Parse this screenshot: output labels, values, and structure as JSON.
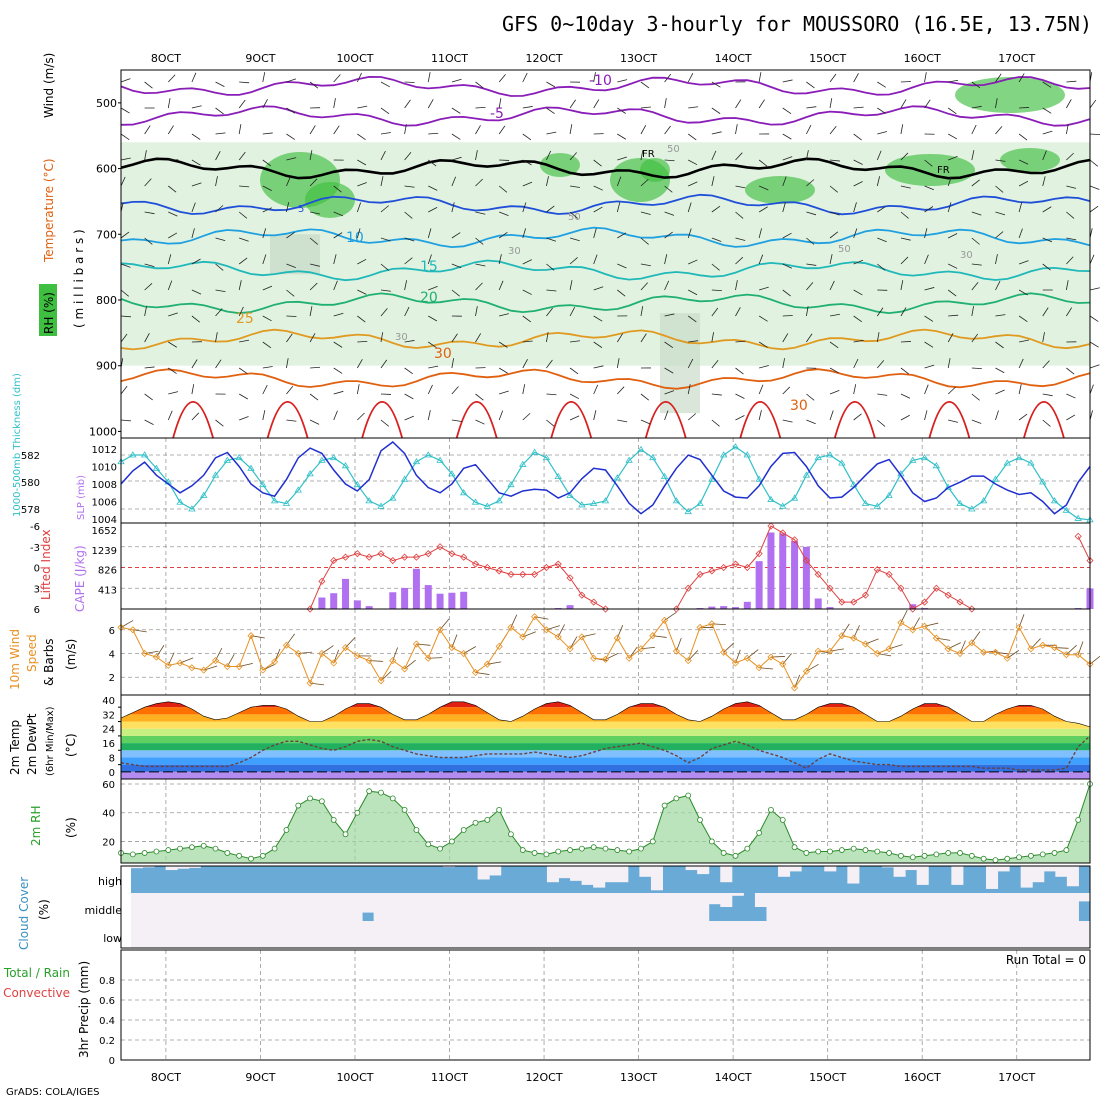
{
  "title": "GFS 0~10day 3-hourly for MOUSSORO (16.5E, 13.75N)",
  "footer": "GrADS: COLA/IGES",
  "time_axis": {
    "labels": [
      "8OCT",
      "9OCT",
      "10OCT",
      "11OCT",
      "12OCT",
      "13OCT",
      "14OCT",
      "15OCT",
      "16OCT",
      "17OCT"
    ]
  },
  "colors": {
    "frame": "#000000",
    "grid": "#999999",
    "rh_green": "#3fbf3f",
    "rh_light": "#e1f2e1",
    "t_minus10": "#8a1db8",
    "t_minus5": "#8a1db8",
    "t_0": "#000000",
    "t_5": "#1f4fd8",
    "t_10": "#1fa0e0",
    "t_15": "#20b8b8",
    "t_20": "#20b070",
    "t_25": "#e09a20",
    "t_30": "#e06010",
    "t_35": "#d82020",
    "slp": "#1f2fd0",
    "thick": "#30c0c8",
    "li": "#e04040",
    "cape": "#b070f0",
    "wind": "#e89020",
    "cloud": "#6aaad6",
    "cloud_clear": "#f4f0f6"
  },
  "panels": {
    "upper_air": {
      "ylabel_parts": [
        "RH (%)",
        "Temperature (°C)",
        "Wind (m/s)"
      ],
      "ylabel_unit": "( m i l l i b a r s )",
      "pressure_ticks": [
        "500",
        "600",
        "700",
        "800",
        "900",
        "1000"
      ],
      "contour_labels": [
        "-10",
        "-5",
        "FR",
        "5",
        "10",
        "15",
        "20",
        "25",
        "30",
        "30",
        "50",
        "50",
        "50",
        "30",
        "30",
        "30",
        "FR"
      ]
    },
    "slp_thickness": {
      "ylabel_left": "1000-500mb Thickness (dm)",
      "ylabel_right": "SLP (mb)",
      "left_ticks": [
        "582",
        "580",
        "578"
      ],
      "right_ticks": [
        "1012",
        "1010",
        "1008",
        "1006",
        "1004"
      ]
    },
    "stability": {
      "ylabel_left": "Lifted Index",
      "ylabel_right": "CAPE (J/kg)",
      "left_ticks": [
        "-6",
        "-3",
        "0",
        "3",
        "6"
      ],
      "right_ticks": [
        "1652",
        "1239",
        "826",
        "413"
      ]
    },
    "wind10m": {
      "ylabel_a": "10m Wind",
      "ylabel_b": "Speed",
      "ylabel_c": "& Barbs",
      "ylabel_unit": "(m/s)",
      "ticks": [
        "6",
        "4",
        "2"
      ]
    },
    "temp2m": {
      "ylabel_a": "2m Temp",
      "ylabel_b": "2m DewPt",
      "ylabel_c": "(6hr Min/Max)",
      "ylabel_unit": "(°C)",
      "ticks": [
        "40",
        "32",
        "24",
        "16",
        "8",
        "0"
      ],
      "ticks_minor": [
        "36",
        "28",
        "20",
        "12",
        "4"
      ]
    },
    "rh2m": {
      "ylabel": "2m RH",
      "ylabel_unit": "(%)",
      "ticks": [
        "60",
        "40",
        "20"
      ]
    },
    "cloud": {
      "ylabel": "Cloud Cover",
      "ylabel_unit": "(%)",
      "levels": [
        "high",
        "middle",
        "low"
      ]
    },
    "precip": {
      "ylabel_a": "Total / Rain",
      "ylabel_b": "Convective",
      "ylabel_unit": "3hr Precip (mm)",
      "ticks": [
        "0.8",
        "0.6",
        "0.4",
        "0.2",
        "0"
      ],
      "run_total": "Run Total = 0"
    }
  },
  "chart_data": {
    "type": "meteogram",
    "time_start": "7OCT 15Z",
    "step_hours": 3,
    "series": {
      "slp_mb": [
        1008,
        1009.5,
        1010.5,
        1009,
        1008,
        1007,
        1007.8,
        1009,
        1011,
        1011.6,
        1010,
        1008,
        1007,
        1006.6,
        1008.5,
        1011,
        1012.1,
        1011.5,
        1009.6,
        1008,
        1007.2,
        1008.5,
        1011.8,
        1012.8,
        1011.5,
        1009,
        1007.6,
        1007,
        1008,
        1009.8,
        1010.2,
        1008.6,
        1007,
        1006.6,
        1007.2,
        1007.4,
        1007.3,
        1006.4,
        1007,
        1008.6,
        1009.8,
        1009.6,
        1007.8,
        1005.8,
        1004.6,
        1005.6,
        1007.8,
        1009.8,
        1011.3,
        1010.8,
        1009,
        1007.2,
        1006.5,
        1006.4,
        1007.8,
        1010,
        1011.5,
        1011.6,
        1010,
        1007.8,
        1006.4,
        1006.5,
        1007.6,
        1009,
        1010.3,
        1010.8,
        1009,
        1007,
        1006,
        1006.4,
        1007.6,
        1008.2,
        1008.9,
        1008.9,
        1008,
        1007.3,
        1006.8,
        1007,
        1006,
        1004.6,
        1005.6,
        1008.2,
        1010
      ],
      "thickness_dm": [
        581.5,
        582.0,
        582.0,
        581.0,
        580.0,
        578.5,
        578.0,
        579.0,
        580.5,
        581.6,
        581.8,
        581.0,
        579.8,
        578.6,
        578.4,
        579.4,
        580.6,
        581.6,
        581.8,
        581.2,
        579.8,
        578.6,
        578.2,
        578.8,
        580.2,
        581.5,
        582.0,
        581.6,
        580.6,
        579.2,
        578.5,
        578.2,
        578.6,
        579.8,
        581.3,
        582.2,
        581.8,
        580.4,
        579.0,
        578.3,
        578.4,
        578.6,
        580.3,
        581.6,
        582.4,
        581.8,
        580.4,
        578.6,
        577.8,
        578.4,
        580.2,
        582.0,
        582.6,
        582.0,
        580.2,
        578.7,
        578.2,
        578.8,
        580.5,
        581.8,
        582.0,
        581.4,
        579.8,
        578.4,
        578.2,
        579.0,
        580.6,
        581.6,
        581.8,
        581.2,
        579.6,
        578.4,
        578.0,
        578.6,
        580.2,
        581.4,
        581.8,
        581.4,
        580.0,
        578.6,
        577.9,
        577.3,
        577.2
      ],
      "lifted_index": [
        null,
        null,
        null,
        null,
        null,
        null,
        null,
        null,
        null,
        null,
        null,
        null,
        null,
        null,
        null,
        null,
        6,
        2,
        -1,
        -1.5,
        -2,
        -1.5,
        -2,
        -1,
        -1.5,
        -1.5,
        -2,
        -3,
        -2,
        -1.5,
        -0.5,
        0,
        0.5,
        1,
        1,
        1,
        0,
        -0.5,
        1.5,
        4,
        5,
        6,
        null,
        null,
        null,
        null,
        null,
        6,
        3,
        1,
        0.5,
        0,
        -0.5,
        0,
        -2,
        -6,
        -5,
        -4,
        -1,
        1,
        3,
        5,
        5,
        4,
        0.3,
        1,
        3,
        6,
        5,
        3,
        4,
        5,
        6,
        null,
        null,
        null,
        null,
        null,
        null,
        null,
        null,
        -4.5,
        -1
      ],
      "cape_jkg": [
        0,
        0,
        0,
        0,
        0,
        0,
        0,
        0,
        0,
        0,
        0,
        0,
        0,
        0,
        0,
        0,
        0,
        240,
        330,
        630,
        180,
        60,
        0,
        350,
        440,
        840,
        500,
        320,
        340,
        360,
        0,
        0,
        0,
        0,
        0,
        0,
        0,
        20,
        80,
        0,
        0,
        0,
        0,
        0,
        0,
        0,
        0,
        0,
        0,
        20,
        50,
        60,
        40,
        150,
        1000,
        1600,
        1580,
        1420,
        1300,
        220,
        40,
        0,
        0,
        0,
        0,
        0,
        0,
        100,
        20,
        0,
        0,
        0,
        0,
        0,
        0,
        0,
        0,
        0,
        0,
        0,
        0,
        20,
        430
      ],
      "wind10m_ms": [
        6.2,
        6,
        4,
        3.7,
        3,
        3.2,
        2.8,
        2.6,
        3.4,
        2.9,
        2.9,
        5.5,
        2.6,
        3.3,
        4.7,
        4,
        1.5,
        4,
        3.2,
        4.5,
        3.8,
        3.4,
        1.7,
        3.4,
        2.7,
        4.8,
        3.6,
        6,
        4.5,
        4,
        2.4,
        3.1,
        4.6,
        6.2,
        5.4,
        7.1,
        6,
        5.4,
        4.4,
        5.4,
        3.6,
        3.5,
        5.3,
        3.6,
        4.4,
        5.5,
        6.8,
        4.2,
        3.4,
        6.2,
        6.5,
        4.1,
        3.2,
        3.6,
        2.8,
        3.7,
        3.1,
        1.1,
        2.5,
        4.2,
        4.2,
        5.5,
        5.3,
        4.8,
        4,
        4.4,
        6.6,
        6,
        6.3,
        5.3,
        4.4,
        4,
        4.9,
        4.1,
        4.1,
        3.6,
        6.2,
        4.4,
        4.7,
        4.5,
        3.9,
        3.9,
        3.1
      ],
      "temp2m_c": [
        30,
        33,
        36,
        38,
        39,
        38,
        35,
        31,
        29,
        30,
        33,
        36,
        37,
        37,
        35,
        31,
        28,
        28,
        31,
        35,
        38,
        38,
        36,
        32,
        29,
        29,
        32,
        36,
        39,
        39,
        37,
        33,
        29,
        28,
        31,
        35,
        38,
        39,
        37,
        33,
        29,
        29,
        32,
        36,
        38,
        38,
        36,
        32,
        29,
        28,
        31,
        35,
        38,
        39,
        37,
        33,
        29,
        29,
        32,
        36,
        38,
        38,
        36,
        32,
        28,
        28,
        31,
        35,
        38,
        38,
        36,
        32,
        28,
        28,
        32,
        35,
        37,
        37,
        35,
        31,
        28,
        27,
        25
      ],
      "dewpt2m_c": [
        5,
        4,
        3,
        3,
        3,
        3,
        3,
        3,
        3,
        3,
        5,
        8,
        12,
        15,
        17,
        17,
        15,
        13,
        12,
        14,
        17,
        18,
        17,
        14,
        12,
        10,
        9,
        8,
        8,
        8,
        9,
        10,
        10,
        10,
        10,
        11,
        10,
        9,
        8,
        9,
        11,
        13,
        14,
        15,
        16,
        14,
        12,
        9,
        5,
        8,
        13,
        15,
        17,
        15,
        12,
        10,
        8,
        5,
        2,
        7,
        10,
        8,
        6,
        5,
        4,
        4,
        3,
        3,
        3,
        3,
        3,
        3,
        3,
        2,
        2,
        2,
        1,
        1,
        1,
        1,
        2,
        14,
        20
      ],
      "rh2m_pct": [
        12,
        11,
        12,
        13,
        14,
        15,
        16,
        17,
        15,
        12,
        10,
        8,
        10,
        15,
        28,
        45,
        50,
        48,
        35,
        25,
        40,
        55,
        54,
        50,
        42,
        28,
        18,
        15,
        20,
        28,
        33,
        35,
        42,
        25,
        14,
        12,
        11,
        13,
        14,
        15,
        16,
        15,
        14,
        13,
        15,
        20,
        45,
        50,
        52,
        35,
        20,
        12,
        10,
        15,
        26,
        42,
        35,
        16,
        12,
        13,
        13,
        14,
        15,
        14,
        13,
        12,
        10,
        9,
        10,
        11,
        12,
        12,
        10,
        8,
        7,
        8,
        9,
        10,
        11,
        12,
        14,
        35,
        60
      ],
      "cloud_high_pct": [
        92,
        95,
        100,
        85,
        90,
        93,
        100,
        100,
        100,
        100,
        100,
        100,
        100,
        100,
        100,
        100,
        100,
        100,
        100,
        100,
        100,
        100,
        100,
        100,
        100,
        100,
        100,
        96,
        100,
        100,
        50,
        65,
        100,
        100,
        100,
        100,
        40,
        55,
        45,
        30,
        20,
        40,
        40,
        100,
        60,
        10,
        100,
        100,
        85,
        70,
        100,
        40,
        100,
        100,
        100,
        100,
        60,
        80,
        100,
        100,
        80,
        100,
        35,
        100,
        100,
        95,
        60,
        85,
        30,
        100,
        100,
        30,
        100,
        100,
        15,
        80,
        100,
        20,
        40,
        80,
        60,
        25,
        100
      ],
      "cloud_mid_pct": [
        0,
        0,
        0,
        0,
        0,
        0,
        0,
        0,
        0,
        0,
        0,
        0,
        0,
        0,
        0,
        0,
        0,
        0,
        0,
        0,
        30,
        0,
        0,
        0,
        0,
        0,
        0,
        0,
        0,
        0,
        0,
        0,
        0,
        0,
        0,
        0,
        0,
        0,
        0,
        0,
        0,
        0,
        0,
        0,
        0,
        0,
        0,
        0,
        0,
        0,
        60,
        50,
        90,
        100,
        50,
        0,
        0,
        0,
        0,
        0,
        0,
        0,
        0,
        0,
        0,
        0,
        0,
        0,
        0,
        0,
        0,
        0,
        0,
        0,
        0,
        0,
        0,
        0,
        0,
        0,
        0,
        0,
        70
      ],
      "cloud_low_pct": [
        0,
        0,
        0,
        0,
        0,
        0,
        0,
        0,
        0,
        0,
        0,
        0,
        0,
        0,
        0,
        0,
        0,
        0,
        0,
        0,
        0,
        0,
        0,
        0,
        0,
        0,
        0,
        0,
        0,
        0,
        0,
        0,
        0,
        0,
        0,
        0,
        0,
        0,
        0,
        0,
        0,
        0,
        0,
        0,
        0,
        0,
        0,
        0,
        0,
        0,
        0,
        0,
        0,
        0,
        0,
        0,
        0,
        0,
        0,
        0,
        0,
        0,
        0,
        0,
        0,
        0,
        0,
        0,
        0,
        0,
        0,
        0,
        0,
        0,
        0,
        0,
        0,
        0,
        0,
        0,
        0,
        0,
        0
      ],
      "precip3h_mm": [
        0,
        0,
        0,
        0,
        0,
        0,
        0,
        0,
        0,
        0,
        0,
        0,
        0,
        0,
        0,
        0,
        0,
        0,
        0,
        0,
        0,
        0,
        0,
        0,
        0,
        0,
        0,
        0,
        0,
        0,
        0,
        0,
        0,
        0,
        0,
        0,
        0,
        0,
        0,
        0,
        0,
        0,
        0,
        0,
        0,
        0,
        0,
        0,
        0,
        0,
        0,
        0,
        0,
        0,
        0,
        0,
        0,
        0,
        0,
        0,
        0,
        0,
        0,
        0,
        0,
        0,
        0,
        0,
        0,
        0,
        0,
        0,
        0,
        0,
        0,
        0,
        0,
        0,
        0,
        0,
        0,
        0,
        0
      ]
    },
    "upper_air_isotherms": [
      {
        "label": "-10",
        "level_mb": 475,
        "color": "t_minus10"
      },
      {
        "label": "-5",
        "level_mb": 520,
        "color": "t_minus5"
      },
      {
        "label": "FR",
        "level_mb": 600,
        "color": "t_0"
      },
      {
        "label": "5",
        "level_mb": 655,
        "color": "t_5"
      },
      {
        "label": "10",
        "level_mb": 705,
        "color": "t_10"
      },
      {
        "label": "15",
        "level_mb": 755,
        "color": "t_15"
      },
      {
        "label": "20",
        "level_mb": 805,
        "color": "t_20"
      },
      {
        "label": "25",
        "level_mb": 860,
        "color": "t_25"
      },
      {
        "label": "30",
        "level_mb": 920,
        "color": "t_30"
      }
    ]
  }
}
